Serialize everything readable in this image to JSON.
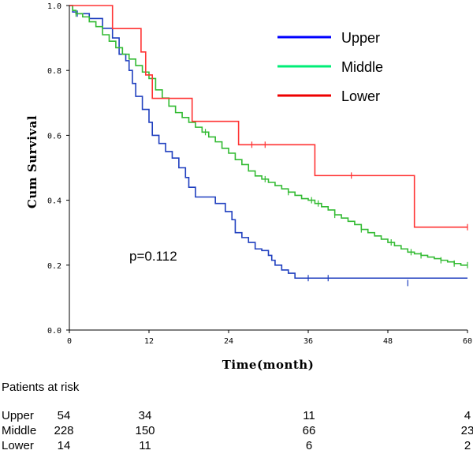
{
  "chart_data": {
    "type": "line",
    "subtype": "kaplan-meier step",
    "xlabel": "Time(month)",
    "ylabel": "Cum Survival",
    "xlim": [
      0,
      60
    ],
    "ylim": [
      0,
      1
    ],
    "x_ticks": [
      0,
      12,
      24,
      36,
      48,
      60
    ],
    "x_tick_labels": [
      "0",
      "12",
      "24",
      "36",
      "48",
      "60"
    ],
    "y_ticks": [
      0,
      0.2,
      0.4,
      0.6,
      0.8,
      1.0
    ],
    "y_tick_labels": [
      "0.0",
      "0.2",
      "0.4",
      "0.6",
      "0.8",
      "1.0"
    ],
    "legend_position": "top-right",
    "annotation": "p=0.112",
    "series": [
      {
        "name": "Upper",
        "color": "#1f3fbf",
        "legend_color": "#0000ff",
        "steps": [
          [
            0,
            1.0
          ],
          [
            0.5,
            0.98
          ],
          [
            1,
            0.975
          ],
          [
            3,
            0.96
          ],
          [
            5,
            0.93
          ],
          [
            6.5,
            0.9
          ],
          [
            7.5,
            0.85
          ],
          [
            8.5,
            0.83
          ],
          [
            9,
            0.8
          ],
          [
            9.5,
            0.76
          ],
          [
            10,
            0.72
          ],
          [
            11,
            0.68
          ],
          [
            12,
            0.64
          ],
          [
            12.5,
            0.6
          ],
          [
            13.5,
            0.575
          ],
          [
            14.5,
            0.55
          ],
          [
            15.5,
            0.53
          ],
          [
            16.5,
            0.5
          ],
          [
            17.5,
            0.47
          ],
          [
            18,
            0.44
          ],
          [
            19,
            0.41
          ],
          [
            22,
            0.39
          ],
          [
            23.5,
            0.365
          ],
          [
            24.5,
            0.34
          ],
          [
            25,
            0.3
          ],
          [
            26,
            0.285
          ],
          [
            27,
            0.27
          ],
          [
            28,
            0.25
          ],
          [
            29,
            0.245
          ],
          [
            30,
            0.23
          ],
          [
            30.5,
            0.215
          ],
          [
            31,
            0.2
          ],
          [
            32,
            0.185
          ],
          [
            33,
            0.175
          ],
          [
            34,
            0.16
          ]
        ],
        "censors": [
          [
            1.2,
            0.975
          ],
          [
            36,
            0.16
          ],
          [
            39,
            0.16
          ],
          [
            51,
            0.145
          ]
        ]
      },
      {
        "name": "Middle",
        "color": "#33bb33",
        "legend_color": "#00ee77",
        "steps": [
          [
            0,
            1.0
          ],
          [
            0.5,
            0.985
          ],
          [
            1,
            0.975
          ],
          [
            2,
            0.965
          ],
          [
            3,
            0.95
          ],
          [
            4,
            0.935
          ],
          [
            5,
            0.91
          ],
          [
            6,
            0.89
          ],
          [
            7,
            0.87
          ],
          [
            8,
            0.85
          ],
          [
            9,
            0.835
          ],
          [
            10,
            0.815
          ],
          [
            11,
            0.795
          ],
          [
            12,
            0.775
          ],
          [
            13,
            0.74
          ],
          [
            14,
            0.715
          ],
          [
            15,
            0.69
          ],
          [
            16,
            0.67
          ],
          [
            17,
            0.655
          ],
          [
            18,
            0.64
          ],
          [
            19,
            0.625
          ],
          [
            20,
            0.61
          ],
          [
            21,
            0.595
          ],
          [
            22,
            0.58
          ],
          [
            23,
            0.56
          ],
          [
            24,
            0.545
          ],
          [
            25,
            0.525
          ],
          [
            26,
            0.51
          ],
          [
            27,
            0.49
          ],
          [
            28,
            0.475
          ],
          [
            29,
            0.465
          ],
          [
            30,
            0.455
          ],
          [
            31,
            0.445
          ],
          [
            32,
            0.435
          ],
          [
            33,
            0.425
          ],
          [
            34,
            0.415
          ],
          [
            35,
            0.405
          ],
          [
            36,
            0.4
          ],
          [
            37,
            0.39
          ],
          [
            38,
            0.38
          ],
          [
            39,
            0.37
          ],
          [
            40,
            0.355
          ],
          [
            41,
            0.345
          ],
          [
            42,
            0.335
          ],
          [
            43,
            0.325
          ],
          [
            44,
            0.31
          ],
          [
            45,
            0.3
          ],
          [
            46,
            0.29
          ],
          [
            47,
            0.28
          ],
          [
            48,
            0.27
          ],
          [
            49,
            0.26
          ],
          [
            50,
            0.25
          ],
          [
            51,
            0.24
          ],
          [
            52,
            0.235
          ],
          [
            53,
            0.23
          ],
          [
            54,
            0.225
          ],
          [
            55,
            0.22
          ],
          [
            56,
            0.215
          ],
          [
            57,
            0.21
          ],
          [
            58,
            0.205
          ],
          [
            59,
            0.2
          ]
        ],
        "censors": [
          [
            1,
            0.975
          ],
          [
            20.5,
            0.61
          ],
          [
            29.5,
            0.465
          ],
          [
            33,
            0.425
          ],
          [
            36.5,
            0.4
          ],
          [
            37.5,
            0.39
          ],
          [
            40,
            0.355
          ],
          [
            44,
            0.31
          ],
          [
            48.5,
            0.27
          ],
          [
            51.5,
            0.24
          ],
          [
            53,
            0.23
          ],
          [
            56,
            0.215
          ],
          [
            58,
            0.205
          ],
          [
            60,
            0.2
          ]
        ]
      },
      {
        "name": "Lower",
        "color": "#ff3333",
        "legend_color": "#ee0000",
        "steps": [
          [
            0,
            1.0
          ],
          [
            6.5,
            0.929
          ],
          [
            10.8,
            0.857
          ],
          [
            11.5,
            0.786
          ],
          [
            12.5,
            0.714
          ],
          [
            18.5,
            0.643
          ],
          [
            25.5,
            0.571
          ],
          [
            37,
            0.476
          ],
          [
            52,
            0.317
          ]
        ],
        "censors": [
          [
            27.5,
            0.571
          ],
          [
            29.5,
            0.571
          ],
          [
            42.5,
            0.476
          ],
          [
            60,
            0.317
          ]
        ]
      }
    ]
  },
  "risk_table": {
    "title": "Patients at risk",
    "rows": [
      {
        "label": "Upper",
        "values": [
          "54",
          "34",
          "11",
          "4"
        ]
      },
      {
        "label": "Middle",
        "values": [
          "228",
          "150",
          "66",
          "23"
        ]
      },
      {
        "label": "Lower",
        "values": [
          "14",
          "11",
          "6",
          "2"
        ]
      }
    ]
  }
}
